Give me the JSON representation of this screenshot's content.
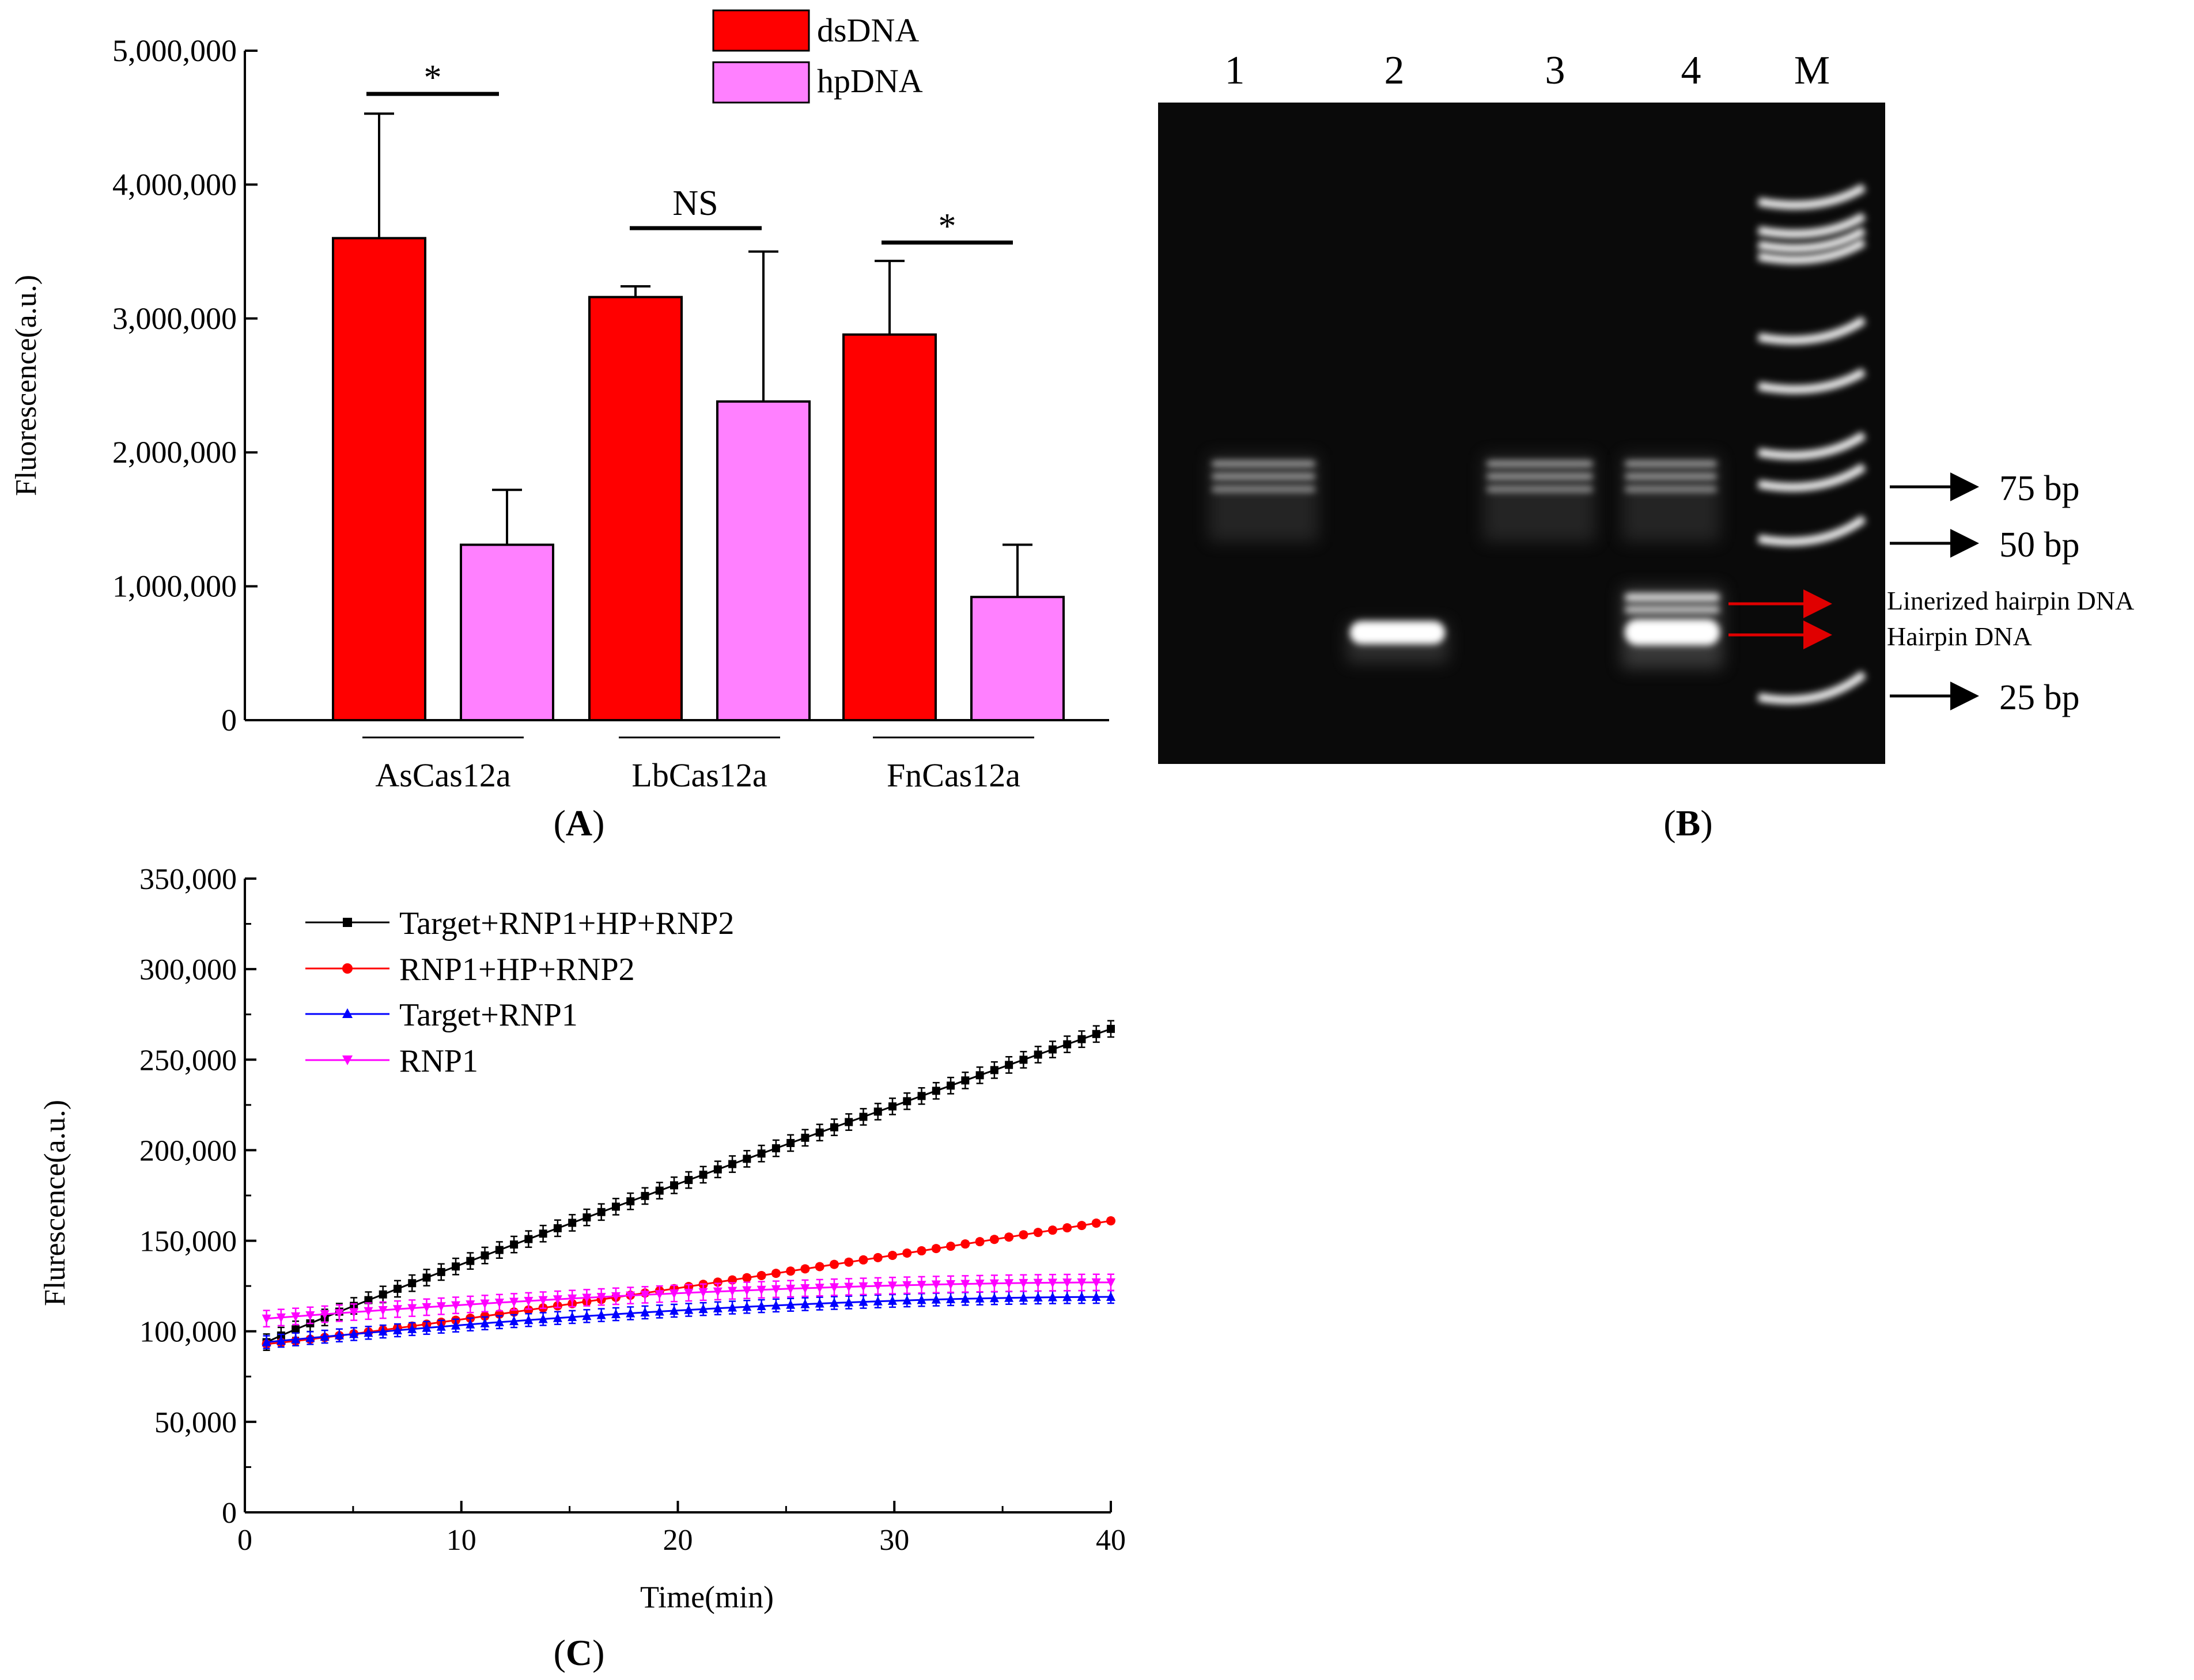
{
  "panels": {
    "A": "A",
    "B": "B",
    "C": "C"
  },
  "colors": {
    "ds": "#ff0000",
    "hp": "#ff80ff",
    "black": "#000000",
    "red": "#ff0000",
    "blue": "#0000ff",
    "magenta": "#ff00ff"
  },
  "chart_data": [
    {
      "id": "A",
      "type": "bar",
      "title": "",
      "xlabel": "",
      "ylabel": "Fluorescence(a.u.)",
      "ylim": [
        0,
        5000000
      ],
      "ytick_values": [
        0,
        1000000,
        2000000,
        3000000,
        4000000,
        5000000
      ],
      "ytick_labels": [
        "0",
        "1,000,000",
        "2,000,000",
        "3,000,000",
        "4,000,000",
        "5,000,000"
      ],
      "categories": [
        "AsCas12a",
        "LbCas12a",
        "FnCas12a"
      ],
      "series": [
        {
          "name": "dsDNA",
          "values": [
            3600000,
            3160000,
            2880000
          ],
          "errors": [
            930000,
            80000,
            550000
          ]
        },
        {
          "name": "hpDNA",
          "values": [
            1310000,
            2380000,
            920000
          ],
          "errors": [
            410000,
            1120000,
            390000
          ]
        }
      ],
      "significance": [
        "*",
        "NS",
        "*"
      ],
      "legend": "top-center"
    },
    {
      "id": "B",
      "type": "gel",
      "lane_labels": [
        "1",
        "2",
        "3",
        "4",
        "M"
      ],
      "marker_labels": [
        "75 bp",
        "50 bp",
        "25 bp"
      ],
      "annotations": [
        "Linerized hairpin DNA",
        "Hairpin DNA"
      ]
    },
    {
      "id": "C",
      "type": "line",
      "xlabel": "Time(min)",
      "ylabel": "Flurescence(a.u.)",
      "xlim": [
        0,
        40
      ],
      "ylim": [
        0,
        350000
      ],
      "xtick_labels": [
        "0",
        "10",
        "20",
        "30",
        "40"
      ],
      "ytick_values": [
        0,
        50000,
        100000,
        150000,
        200000,
        250000,
        300000,
        350000
      ],
      "ytick_labels": [
        "0",
        "50,000",
        "100,000",
        "150,000",
        "200,000",
        "250,000",
        "300,000",
        "350,000"
      ],
      "x_range_data": [
        1,
        40
      ],
      "points_per_series": 59,
      "series": [
        {
          "name": "Target+RNP1+HP+RNP2",
          "start": 94000,
          "end": 267000,
          "curve": 0.95,
          "error": 4500
        },
        {
          "name": "RNP1+HP+RNP2",
          "start": 93000,
          "end": 161000,
          "curve": 1.1,
          "error": 1500
        },
        {
          "name": "Target+RNP1",
          "start": 94000,
          "end": 119000,
          "curve": 0.5,
          "error": 3500
        },
        {
          "name": "RNP1",
          "start": 107000,
          "end": 127000,
          "curve": 0.55,
          "error": 4500
        }
      ],
      "legend": "top-left"
    }
  ]
}
